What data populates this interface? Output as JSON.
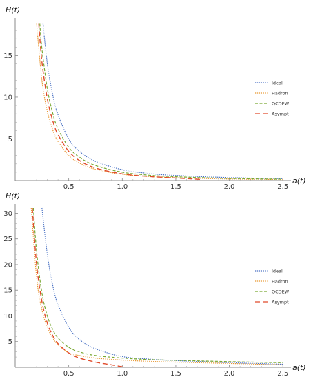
{
  "chart_data": [
    {
      "type": "line",
      "title": "",
      "xlabel": "a(t)",
      "ylabel": "H(t)",
      "xlim": [
        0,
        2.55
      ],
      "ylim": [
        0,
        19
      ],
      "x_ticks": [
        "0.5",
        "1.0",
        "1.5",
        "2.0",
        "2.5"
      ],
      "y_ticks": [
        "5",
        "10",
        "15"
      ],
      "legend_position": "right",
      "series": [
        {
          "name": "Ideal",
          "color": "#4a72c4",
          "dash": "dotted",
          "x": [
            0.26,
            0.3,
            0.35,
            0.4,
            0.5,
            0.6,
            0.75,
            1.0,
            1.25,
            1.5,
            2.0,
            2.5
          ],
          "y": [
            18.8,
            14.0,
            10.3,
            7.9,
            5.0,
            3.5,
            2.3,
            1.3,
            0.85,
            0.6,
            0.35,
            0.22
          ]
        },
        {
          "name": "Hadron",
          "color": "#e8962e",
          "dash": "dotted",
          "x": [
            0.2,
            0.25,
            0.3,
            0.35,
            0.4,
            0.5,
            0.6,
            0.75,
            1.0,
            1.25,
            1.5,
            2.0,
            2.5
          ],
          "y": [
            18.8,
            12.0,
            8.3,
            6.1,
            4.7,
            3.0,
            2.1,
            1.35,
            0.75,
            0.48,
            0.33,
            0.18,
            0.12
          ]
        },
        {
          "name": "QCDEW",
          "color": "#79a832",
          "dash": "dashed",
          "x": [
            0.23,
            0.25,
            0.3,
            0.35,
            0.4,
            0.5,
            0.6,
            0.75,
            1.0,
            1.25,
            1.5,
            2.0,
            2.5
          ],
          "y": [
            18.8,
            15.8,
            11.0,
            8.1,
            6.2,
            4.0,
            2.8,
            1.8,
            1.0,
            0.64,
            0.45,
            0.25,
            0.16
          ]
        },
        {
          "name": "Asympt",
          "color": "#e04a2a",
          "dash": "longdash",
          "x": [
            0.22,
            0.25,
            0.3,
            0.35,
            0.4,
            0.5,
            0.6,
            0.75,
            1.0,
            1.25,
            1.5,
            1.75
          ],
          "y": [
            18.8,
            14.2,
            9.8,
            7.2,
            5.5,
            3.5,
            2.4,
            1.5,
            0.8,
            0.48,
            0.3,
            0.12
          ]
        }
      ]
    },
    {
      "type": "line",
      "title": "",
      "xlabel": "a(t)",
      "ylabel": "H(t)",
      "xlim": [
        0,
        2.55
      ],
      "ylim": [
        0,
        31
      ],
      "x_ticks": [
        "0.5",
        "1.0",
        "1.5",
        "2.0",
        "2.5"
      ],
      "y_ticks": [
        "5",
        "10",
        "15",
        "20",
        "25",
        "30"
      ],
      "legend_position": "right",
      "series": [
        {
          "name": "Ideal",
          "color": "#4a72c4",
          "dash": "dotted",
          "x": [
            0.25,
            0.3,
            0.35,
            0.4,
            0.5,
            0.6,
            0.75,
            1.0,
            1.25,
            1.5,
            2.0,
            2.5
          ],
          "y": [
            31,
            22.0,
            16.0,
            12.2,
            7.8,
            5.4,
            3.6,
            2.1,
            1.6,
            1.3,
            0.9,
            0.6
          ]
        },
        {
          "name": "Hadron",
          "color": "#e8962e",
          "dash": "dotted",
          "x": [
            0.15,
            0.2,
            0.25,
            0.3,
            0.35,
            0.4,
            0.5,
            0.6,
            0.75,
            1.0,
            1.25,
            1.5,
            2.0,
            2.5
          ],
          "y": [
            31,
            17.5,
            11.2,
            7.8,
            5.7,
            4.4,
            2.8,
            2.3,
            1.8,
            1.4,
            1.15,
            1.0,
            0.75,
            0.5
          ]
        },
        {
          "name": "QCDEW",
          "color": "#79a832",
          "dash": "dashed",
          "x": [
            0.17,
            0.2,
            0.25,
            0.3,
            0.35,
            0.4,
            0.5,
            0.6,
            0.75,
            1.0,
            1.25,
            1.5,
            2.0,
            2.5
          ],
          "y": [
            31,
            22.5,
            14.5,
            10.0,
            7.4,
            5.7,
            3.9,
            3.0,
            2.3,
            1.8,
            1.5,
            1.35,
            1.1,
            0.9
          ]
        },
        {
          "name": "Asympt",
          "color": "#e04a2a",
          "dash": "longdash",
          "x": [
            0.16,
            0.2,
            0.25,
            0.3,
            0.35,
            0.4,
            0.5,
            0.6,
            0.75,
            0.85,
            0.95,
            1.02
          ],
          "y": [
            31,
            20.0,
            12.8,
            8.6,
            6.2,
            4.6,
            2.8,
            1.8,
            1.0,
            0.65,
            0.3,
            0.05
          ]
        }
      ]
    }
  ]
}
